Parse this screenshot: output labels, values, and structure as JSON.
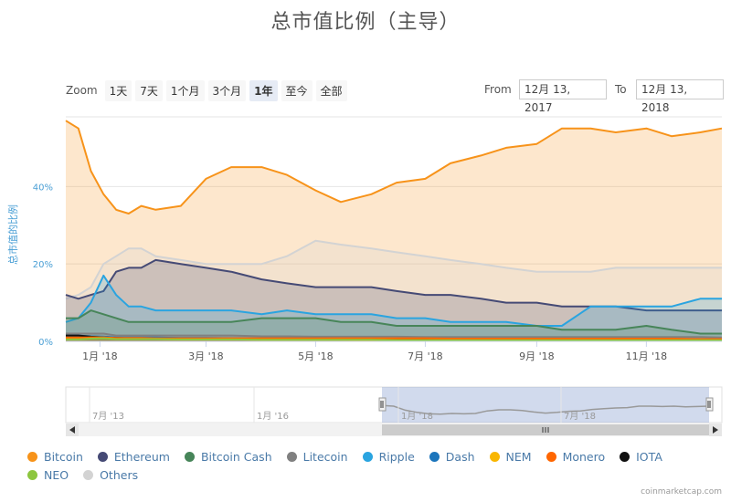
{
  "title": "总市值比例（主导）",
  "zoom": {
    "label": "Zoom",
    "buttons": [
      "1天",
      "7天",
      "1个月",
      "3个月",
      "1年",
      "至今",
      "全部"
    ],
    "selected": "1年"
  },
  "range": {
    "from_label": "From",
    "from_value": "12月 13, 2017",
    "to_label": "To",
    "to_value": "12月 13, 2018"
  },
  "credit": "coinmarketcap.com",
  "chart_data": {
    "type": "area",
    "title": "总市值比例（主导）",
    "ylabel": "总市值的比例",
    "ylim": [
      0,
      58
    ],
    "y_ticks": [
      "0%",
      "20%",
      "40%"
    ],
    "x_ticks": [
      "1月 '18",
      "3月 '18",
      "5月 '18",
      "7月 '18",
      "9月 '18",
      "11月 '18"
    ],
    "x_range": [
      "2017-12-13",
      "2018-12-13"
    ],
    "x": [
      "2017-12-13",
      "2017-12-20",
      "2017-12-27",
      "2018-01-03",
      "2018-01-10",
      "2018-01-17",
      "2018-01-24",
      "2018-02-01",
      "2018-02-15",
      "2018-03-01",
      "2018-03-15",
      "2018-04-01",
      "2018-04-15",
      "2018-05-01",
      "2018-05-15",
      "2018-06-01",
      "2018-06-15",
      "2018-07-01",
      "2018-07-15",
      "2018-08-01",
      "2018-08-15",
      "2018-09-01",
      "2018-09-15",
      "2018-10-01",
      "2018-10-15",
      "2018-11-01",
      "2018-11-15",
      "2018-12-01",
      "2018-12-13"
    ],
    "series": [
      {
        "name": "Bitcoin",
        "color": "#f7931a",
        "values": [
          57,
          55,
          44,
          38,
          34,
          33,
          35,
          34,
          35,
          42,
          45,
          45,
          43,
          39,
          36,
          38,
          41,
          42,
          46,
          48,
          50,
          51,
          55,
          55,
          54,
          55,
          53,
          54,
          55
        ]
      },
      {
        "name": "Ethereum",
        "color": "#454a75",
        "values": [
          12,
          11,
          12,
          13,
          18,
          19,
          19,
          21,
          20,
          19,
          18,
          16,
          15,
          14,
          14,
          14,
          13,
          12,
          12,
          11,
          10,
          10,
          9,
          9,
          9,
          8,
          8,
          8,
          8
        ]
      },
      {
        "name": "Bitcoin Cash",
        "color": "#478559",
        "values": [
          6,
          6,
          8,
          7,
          6,
          5,
          5,
          5,
          5,
          5,
          5,
          6,
          6,
          6,
          5,
          5,
          4,
          4,
          4,
          4,
          4,
          4,
          3,
          3,
          3,
          4,
          3,
          2,
          2
        ]
      },
      {
        "name": "Litecoin",
        "color": "#808080",
        "values": [
          2,
          2,
          2,
          2,
          1.5,
          1.5,
          1.5,
          1.5,
          1.5,
          1.5,
          1.5,
          1.3,
          1.3,
          1.2,
          1.2,
          1.2,
          1.2,
          1.1,
          1.1,
          1.1,
          1.1,
          1.1,
          1.1,
          1.1,
          1.1,
          1.1,
          1.1,
          1.1,
          1
        ]
      },
      {
        "name": "Ripple",
        "color": "#2aa4e0",
        "values": [
          5,
          6,
          10,
          17,
          12,
          9,
          9,
          8,
          8,
          8,
          8,
          7,
          8,
          7,
          7,
          7,
          6,
          6,
          5,
          5,
          5,
          4,
          4,
          9,
          9,
          9,
          9,
          11,
          11
        ]
      },
      {
        "name": "Dash",
        "color": "#1c75bc",
        "values": [
          1.5,
          1.5,
          1.3,
          1.2,
          1,
          1,
          1,
          1,
          0.9,
          0.9,
          0.8,
          0.8,
          0.8,
          0.8,
          0.7,
          0.7,
          0.7,
          0.6,
          0.6,
          0.6,
          0.5,
          0.5,
          0.5,
          0.5,
          0.5,
          0.5,
          0.5,
          0.4,
          0.4
        ]
      },
      {
        "name": "NEM",
        "color": "#f9b600",
        "values": [
          0.6,
          0.8,
          1,
          1,
          0.8,
          0.7,
          0.6,
          0.6,
          0.5,
          0.5,
          0.5,
          0.4,
          0.4,
          0.4,
          0.4,
          0.3,
          0.3,
          0.3,
          0.3,
          0.3,
          0.3,
          0.3,
          0.3,
          0.3,
          0.3,
          0.3,
          0.3,
          0.3,
          0.3
        ]
      },
      {
        "name": "Monero",
        "color": "#ff6600",
        "values": [
          1,
          1,
          1,
          1,
          0.9,
          0.9,
          0.9,
          0.8,
          0.8,
          0.8,
          0.8,
          0.8,
          0.8,
          0.8,
          0.8,
          0.8,
          0.8,
          0.8,
          0.7,
          0.7,
          0.7,
          0.7,
          0.7,
          0.7,
          0.7,
          0.7,
          0.7,
          0.6,
          0.6
        ]
      },
      {
        "name": "IOTA",
        "color": "#111111",
        "values": [
          1.5,
          1.5,
          1.2,
          1,
          0.9,
          0.8,
          0.8,
          0.7,
          0.6,
          0.6,
          0.6,
          0.6,
          0.6,
          0.6,
          0.5,
          0.5,
          0.5,
          0.5,
          0.5,
          0.5,
          0.5,
          0.5,
          0.5,
          0.5,
          0.5,
          0.4,
          0.4,
          0.4,
          0.4
        ]
      },
      {
        "name": "NEO",
        "color": "#8dc63f",
        "values": [
          0.5,
          0.5,
          0.7,
          0.8,
          0.6,
          0.6,
          0.6,
          0.6,
          0.5,
          0.5,
          0.5,
          0.4,
          0.4,
          0.4,
          0.4,
          0.4,
          0.3,
          0.3,
          0.3,
          0.3,
          0.3,
          0.3,
          0.3,
          0.3,
          0.3,
          0.3,
          0.3,
          0.3,
          0.3
        ]
      },
      {
        "name": "Others",
        "color": "#d3d3d3",
        "values": [
          11,
          12,
          14,
          20,
          22,
          24,
          24,
          22,
          21,
          20,
          20,
          20,
          22,
          26,
          25,
          24,
          23,
          22,
          21,
          20,
          19,
          18,
          18,
          18,
          19,
          19,
          19,
          19,
          19
        ]
      }
    ],
    "navigator": {
      "x_ticks": [
        "7月 '13",
        "1月 '16",
        "1月 '18",
        "7月 '18"
      ]
    },
    "grid": true,
    "legend_position": "bottom"
  }
}
